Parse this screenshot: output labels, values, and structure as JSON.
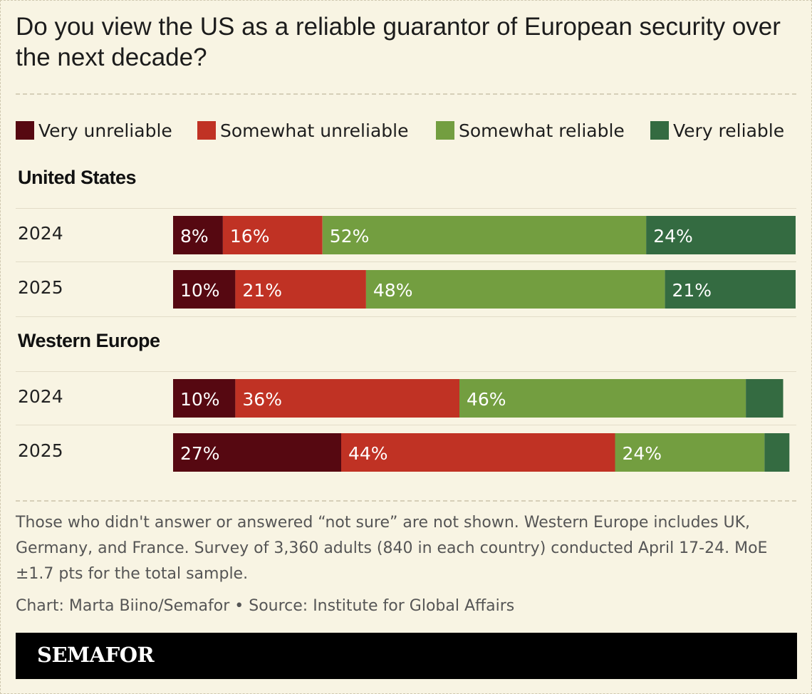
{
  "title": "Do you view the US as a reliable guarantor of European security over the next decade?",
  "legend": [
    {
      "label": "Very unreliable",
      "color": "#560811"
    },
    {
      "label": "Somewhat unreliable",
      "color": "#c03224"
    },
    {
      "label": "Somewhat reliable",
      "color": "#739e40"
    },
    {
      "label": "Very reliable",
      "color": "#346b41"
    }
  ],
  "chart_data": {
    "type": "bar",
    "orientation": "horizontal",
    "stacked": true,
    "title": "Do you view the US as a reliable guarantor of European security over the next decade?",
    "series_names": [
      "Very unreliable",
      "Somewhat unreliable",
      "Somewhat reliable",
      "Very reliable"
    ],
    "groups": [
      {
        "name": "United States",
        "rows": [
          {
            "year": "2024",
            "values": [
              8,
              16,
              52,
              24
            ],
            "labels": [
              "8%",
              "16%",
              "52%",
              "24%"
            ]
          },
          {
            "year": "2025",
            "values": [
              10,
              21,
              48,
              21
            ],
            "labels": [
              "10%",
              "21%",
              "48%",
              "21%"
            ]
          }
        ]
      },
      {
        "name": "Western Europe",
        "rows": [
          {
            "year": "2024",
            "values": [
              10,
              36,
              46,
              6
            ],
            "labels": [
              "10%",
              "36%",
              "46%",
              ""
            ]
          },
          {
            "year": "2025",
            "values": [
              27,
              44,
              24,
              4
            ],
            "labels": [
              "27%",
              "44%",
              "24%",
              ""
            ]
          }
        ]
      }
    ],
    "xlim": [
      0,
      100
    ]
  },
  "note": "Those who didn't answer or answered “not sure” are not shown. Western Europe includes UK, Germany, and France. Survey of 3,360 adults (840 in each country) conducted April 17-24. MoE ±1.7 pts for the total sample.",
  "credit": "Chart: Marta Biino/Semafor • Source: Institute for Global Affairs",
  "brand": "SEMAFOR"
}
